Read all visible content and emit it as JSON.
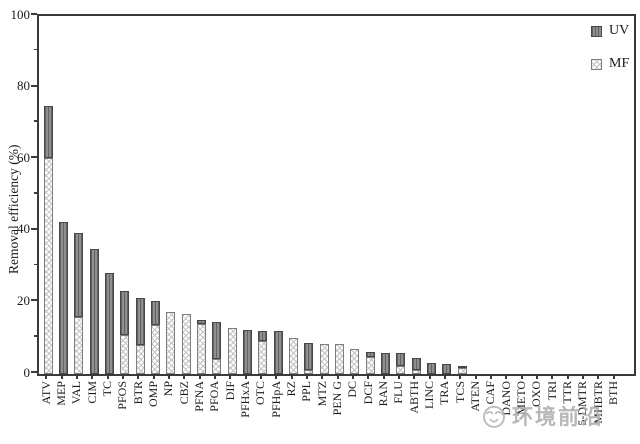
{
  "figure": {
    "ylabel": "Removal efficiency (%)",
    "watermark": {
      "text": "环境前沿",
      "logo": "smiley-logo"
    }
  },
  "legend": {
    "items": [
      {
        "label": "UV",
        "swatch": "uv"
      },
      {
        "label": "MF",
        "swatch": "mf"
      }
    ]
  },
  "chart_data": {
    "type": "bar",
    "stacked": true,
    "title": "",
    "xlabel": "",
    "ylabel": "Removal efficiency (%)",
    "ylim": [
      0,
      100
    ],
    "yticks": [
      0,
      20,
      40,
      60,
      80,
      100
    ],
    "minor_yticks": [
      10,
      30,
      50,
      70,
      90
    ],
    "grid": false,
    "legend_position": "top-right-inside",
    "bar_order": "sorted descending by total removal",
    "categories": [
      "ATV",
      "MEP",
      "VAL",
      "CIM",
      "TC",
      "PFOS",
      "BTR",
      "OMP",
      "NP",
      "CBZ",
      "PFNA",
      "PFOA",
      "DIF",
      "PFHxA",
      "OTC",
      "PFHpA",
      "RZ",
      "PPL",
      "MTZ",
      "PEN G",
      "DC",
      "DCF",
      "RAN",
      "FLU",
      "ABTH",
      "LINC",
      "TRA",
      "TCS",
      "ATEN",
      "CAF",
      "DANO",
      "METO",
      "OXO",
      "TRI",
      "TTR",
      "5-DMTR",
      "MHBTR",
      "BTH"
    ],
    "series": [
      {
        "name": "MF",
        "values": [
          60.3,
          0,
          16.0,
          0,
          0,
          11.0,
          8.1,
          13.7,
          17.3,
          16.9,
          14.1,
          4.3,
          12.8,
          0,
          9.2,
          0,
          10.0,
          1.2,
          8.5,
          8.3,
          6.9,
          4.7,
          0,
          2.1,
          1.0,
          0,
          0,
          1.6,
          0,
          0,
          0,
          0,
          0,
          0,
          0,
          0,
          0,
          0
        ]
      },
      {
        "name": "UV",
        "values": [
          14.5,
          42.5,
          23.5,
          35.0,
          28.2,
          12.2,
          13.0,
          6.8,
          0,
          0,
          1.0,
          10.1,
          0,
          12.4,
          2.9,
          11.9,
          0,
          7.6,
          0,
          0,
          0,
          1.5,
          6.0,
          3.8,
          3.5,
          3.1,
          2.9,
          0.4,
          0,
          0,
          0,
          0,
          0,
          0,
          0,
          0,
          0,
          0
        ]
      }
    ],
    "colors": {
      "uv_fill": "#8f8f8f",
      "uv_border": "#474747",
      "mf_fill": "#fefefe",
      "mf_hatch": "#c3c3c3",
      "mf_border": "#7d7d7d",
      "axis": "#3a3a3a"
    }
  }
}
